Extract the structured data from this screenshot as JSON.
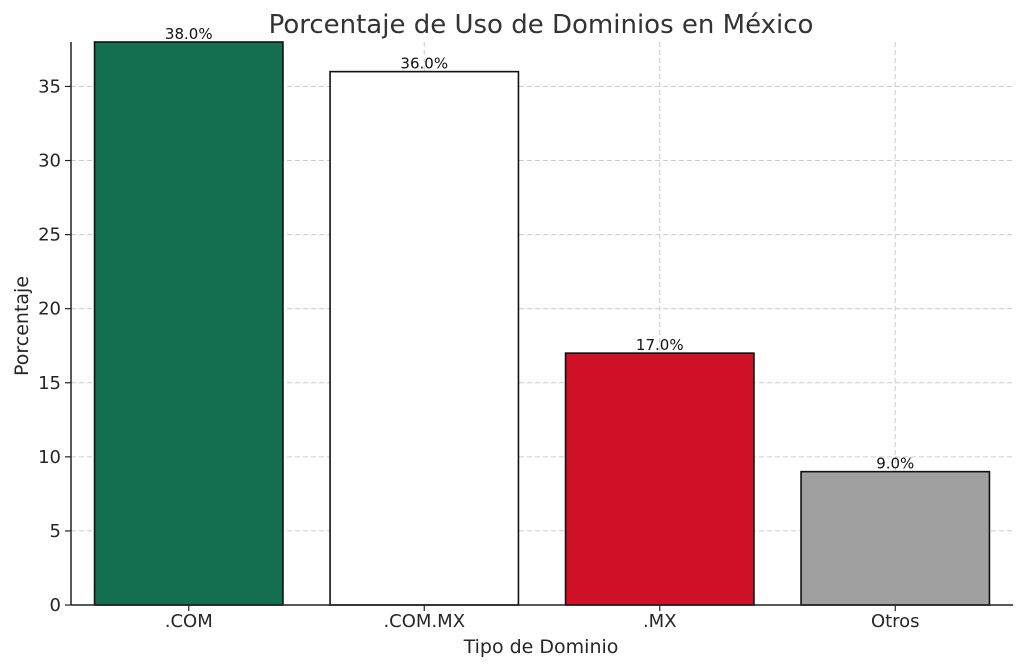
{
  "chart_data": {
    "type": "bar",
    "title": "Porcentaje de Uso de Dominios en México",
    "xlabel": "Tipo de Dominio",
    "ylabel": "Porcentaje",
    "categories": [
      ".COM",
      ".COM.MX",
      ".MX",
      "Otros"
    ],
    "values": [
      38.0,
      36.0,
      17.0,
      9.0
    ],
    "value_labels": [
      "38.0%",
      "36.0%",
      "17.0%",
      "9.0%"
    ],
    "colors": [
      "#136f4f",
      "#ffffff",
      "#ce1126",
      "#a0a0a0"
    ],
    "ylim": [
      0,
      38
    ],
    "yticks": [
      0,
      5,
      10,
      15,
      20,
      25,
      30,
      35
    ],
    "grid": true,
    "legend": "none"
  }
}
